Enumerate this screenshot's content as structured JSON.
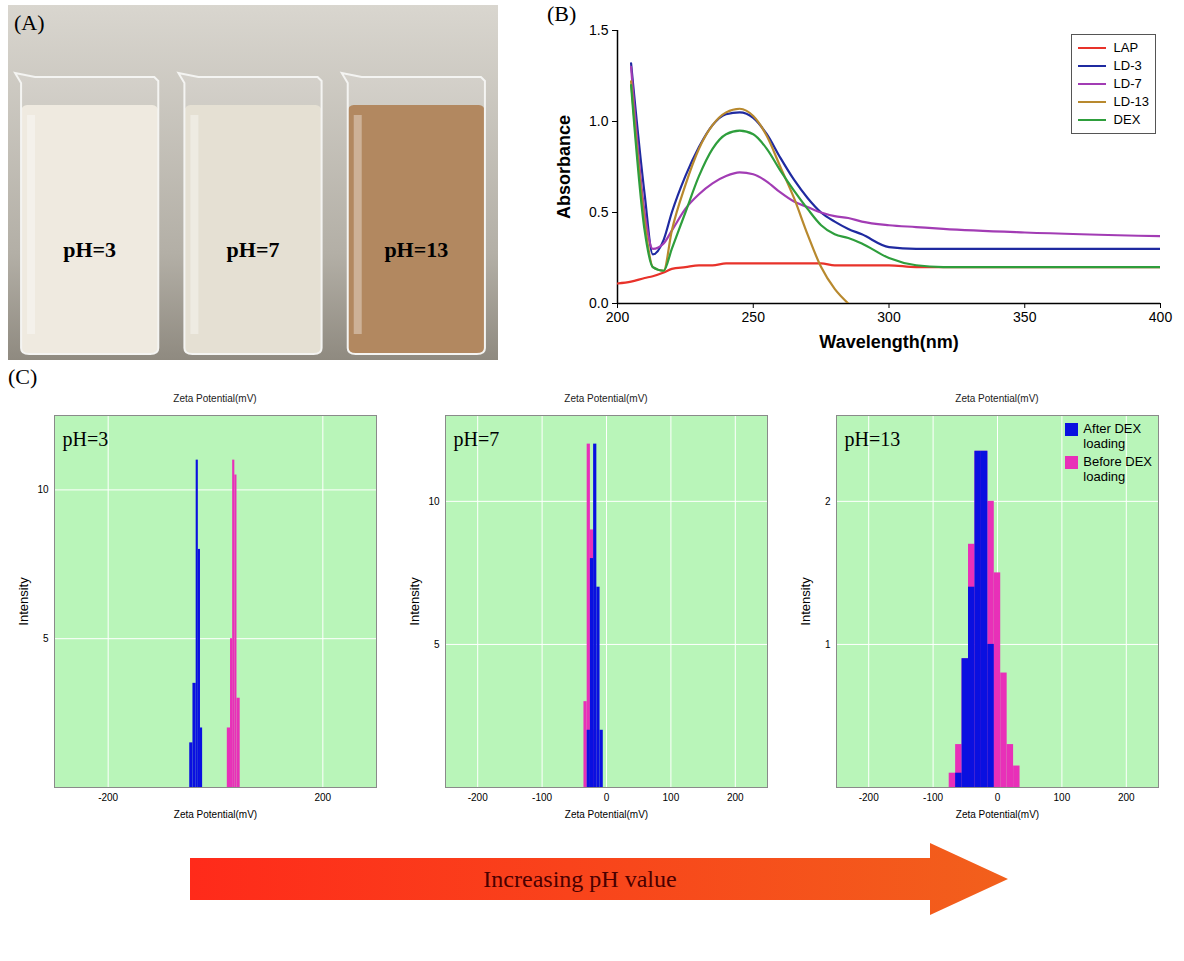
{
  "figure": {
    "panel_labels": [
      "(A)",
      "(B)",
      "(C)"
    ],
    "arrow_text": "Increasing pH value"
  },
  "photo": {
    "beakers": [
      {
        "label": "pH=3",
        "color": "#ede8dc"
      },
      {
        "label": "pH=7",
        "color": "#e2dccd"
      },
      {
        "label": "pH=13",
        "color": "#a8784a"
      }
    ]
  },
  "chart_data": [
    {
      "type": "line",
      "xlabel": "Wavelength(nm)",
      "ylabel": "Absorbance",
      "x": [
        200,
        205,
        210,
        213,
        217,
        220,
        225,
        230,
        235,
        240,
        245,
        250,
        255,
        260,
        265,
        270,
        275,
        280,
        285,
        290,
        300,
        310,
        320,
        350,
        400
      ],
      "series": [
        {
          "name": "LAP",
          "color": "#e8322a",
          "values": [
            0.11,
            0.12,
            0.14,
            0.15,
            0.17,
            0.19,
            0.2,
            0.21,
            0.21,
            0.22,
            0.22,
            0.22,
            0.22,
            0.22,
            0.22,
            0.22,
            0.22,
            0.21,
            0.21,
            0.21,
            0.21,
            0.2,
            0.2,
            0.2,
            0.2
          ]
        },
        {
          "name": "LD-3",
          "color": "#1f2aa0",
          "values": [
            null,
            1.32,
            0.6,
            0.27,
            0.35,
            0.5,
            0.7,
            0.86,
            0.98,
            1.04,
            1.05,
            1.02,
            0.93,
            0.8,
            0.68,
            0.58,
            0.5,
            0.45,
            0.41,
            0.38,
            0.31,
            0.3,
            0.3,
            0.3,
            0.3
          ]
        },
        {
          "name": "LD-7",
          "color": "#a23cb4",
          "values": [
            null,
            1.3,
            0.5,
            0.3,
            0.33,
            0.4,
            0.52,
            0.6,
            0.66,
            0.7,
            0.72,
            0.71,
            0.67,
            0.61,
            0.56,
            0.53,
            0.5,
            0.48,
            0.47,
            0.45,
            0.43,
            0.42,
            0.41,
            0.39,
            0.37
          ]
        },
        {
          "name": "LD-13",
          "color": "#b8892e",
          "values": [
            null,
            1.22,
            0.45,
            0.2,
            0.18,
            0.4,
            0.65,
            0.85,
            0.98,
            1.05,
            1.07,
            1.03,
            0.92,
            0.75,
            0.58,
            0.38,
            0.2,
            0.08,
            0.0,
            null,
            null,
            null,
            null,
            null,
            null
          ]
        },
        {
          "name": "DEX",
          "color": "#2e9e3c",
          "values": [
            null,
            1.2,
            0.4,
            0.2,
            0.18,
            0.3,
            0.5,
            0.7,
            0.85,
            0.93,
            0.95,
            0.93,
            0.85,
            0.73,
            0.62,
            0.52,
            0.43,
            0.38,
            0.36,
            0.33,
            0.25,
            0.21,
            0.2,
            0.2,
            0.2
          ]
        }
      ],
      "xlim": [
        200,
        400
      ],
      "xticks": [
        200,
        250,
        300,
        350,
        400
      ],
      "ylim": [
        0,
        1.5
      ],
      "yticks": [
        {
          "value": 0,
          "label": "0.0"
        },
        {
          "value": 0.5,
          "label": "0.5"
        },
        {
          "value": 1,
          "label": "1.0"
        },
        {
          "value": 1.5,
          "label": "1.5"
        }
      ],
      "grid": false,
      "legend": "top right"
    },
    {
      "type": "histogram",
      "title": "Zeta Potential(mV)",
      "xlabel": "Zeta Potential(mV)",
      "ylabel": "Intensity",
      "annotation": "pH=3",
      "series": [
        {
          "name": "After DEX loading",
          "color": "#0a10e0",
          "bins": [
            -48,
            -42,
            -36,
            -32,
            -28,
            -24
          ],
          "values": [
            1.5,
            3.5,
            11,
            8,
            2
          ]
        },
        {
          "name": "Before DEX loading",
          "color": "#e830b8",
          "bins": [
            22,
            28,
            32,
            36,
            40,
            46
          ],
          "values": [
            2,
            5,
            11,
            10.5,
            3
          ]
        }
      ],
      "xlim": [
        -300,
        300
      ],
      "xticks": [
        -200,
        200
      ],
      "ylim": [
        0,
        12.5
      ],
      "yticks": [
        5,
        10
      ],
      "grid": true
    },
    {
      "type": "histogram",
      "title": "Zeta Potential(mV)",
      "xlabel": "Zeta Potential(mV)",
      "ylabel": "Intensity",
      "annotation": "pH=7",
      "series": [
        {
          "name": "After DEX loading",
          "color": "#0a10e0",
          "bins": [
            -30,
            -25,
            -20,
            -15,
            -10,
            -5
          ],
          "values": [
            2,
            8,
            12,
            7,
            2
          ]
        },
        {
          "name": "Before DEX loading",
          "color": "#e830b8",
          "bins": [
            -35,
            -30,
            -25,
            -20,
            -15
          ],
          "values": [
            3,
            12,
            9,
            2
          ]
        }
      ],
      "xlim": [
        -250,
        250
      ],
      "xticks": [
        -200,
        -100,
        0,
        100,
        200
      ],
      "ylim": [
        0,
        13
      ],
      "yticks": [
        5,
        10
      ],
      "grid": true
    },
    {
      "type": "histogram",
      "title": "Zeta Potential(mV)",
      "xlabel": "Zeta Potential(mV)",
      "ylabel": "Intensity",
      "annotation": "pH=13",
      "series": [
        {
          "name": "After DEX loading",
          "color": "#0a10e0",
          "bins": [
            -65,
            -55,
            -45,
            -35,
            -25,
            -15,
            -5
          ],
          "values": [
            0.1,
            0.9,
            1.4,
            2.35,
            2.35,
            1.0
          ]
        },
        {
          "name": "Before DEX loading",
          "color": "#e830b8",
          "bins": [
            -75,
            -65,
            -55,
            -45,
            -35,
            -25,
            -15,
            -5,
            5,
            15,
            25,
            35
          ],
          "values": [
            0.1,
            0.3,
            0.9,
            1.7,
            2.35,
            2.35,
            2.0,
            1.5,
            0.8,
            0.3,
            0.15
          ]
        }
      ],
      "xlim": [
        -250,
        250
      ],
      "xticks": [
        -200,
        -100,
        0,
        100,
        200
      ],
      "ylim": [
        0,
        2.6
      ],
      "yticks": [
        1,
        2
      ],
      "grid": true,
      "legend": "top right"
    }
  ]
}
